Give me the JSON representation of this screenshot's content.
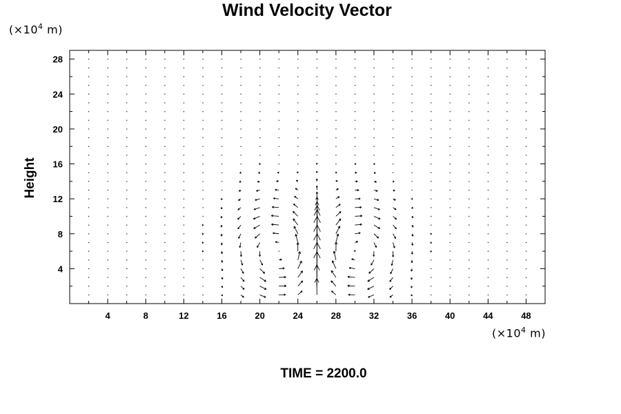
{
  "chart_data": {
    "type": "vector-field",
    "title": "Wind Velocity Vector",
    "ylabel": "Height",
    "x_unit": {
      "prefix": "(×10",
      "exponent": "4",
      "suffix": " m)"
    },
    "y_unit": {
      "prefix": "(×10",
      "exponent": "4",
      "suffix": " m)"
    },
    "xlim": [
      0,
      50
    ],
    "ylim": [
      0,
      29
    ],
    "x_ticks": [
      4,
      8,
      12,
      16,
      20,
      24,
      28,
      32,
      36,
      40,
      44,
      48
    ],
    "y_ticks": [
      4,
      8,
      12,
      16,
      20,
      24,
      28
    ],
    "grid": false,
    "grid_x": [
      2,
      4,
      6,
      8,
      10,
      12,
      14,
      16,
      18,
      20,
      22,
      24,
      26,
      28,
      30,
      32,
      34,
      36,
      38,
      40,
      42,
      44,
      46,
      48
    ],
    "grid_y": [
      1,
      2,
      3,
      4,
      5,
      6,
      7,
      8,
      9,
      10,
      11,
      12,
      13,
      14,
      15,
      16,
      17,
      18,
      19,
      20,
      21,
      22,
      23,
      24,
      25,
      26,
      27,
      28
    ],
    "vortex_centers": [
      [
        22,
        6
      ],
      [
        30,
        6
      ]
    ],
    "updraft_x": 26,
    "annotation": "TIME = 2200.0"
  }
}
